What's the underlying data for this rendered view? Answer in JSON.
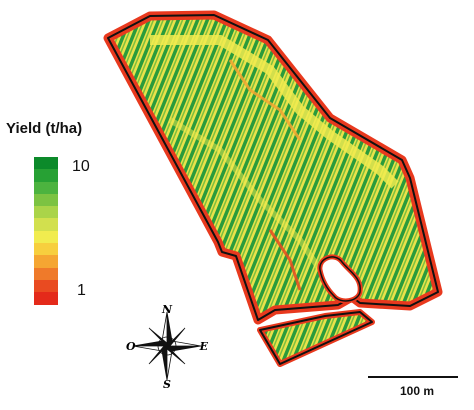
{
  "legend": {
    "title": "Yield (t/ha)",
    "max_label": "10",
    "min_label": "1",
    "colors": [
      "#0c8a2a",
      "#27a134",
      "#4cb33f",
      "#7cc342",
      "#aad449",
      "#d2e04e",
      "#f1ec4f",
      "#f7cf3e",
      "#f5a632",
      "#ef7a2a",
      "#e94b21",
      "#e42a1a"
    ]
  },
  "compass": {
    "north": "N",
    "south": "S",
    "east": "E",
    "west": "O"
  },
  "scale": {
    "label": "100 m"
  },
  "field_colors": {
    "outline": "#111111",
    "edge": "#e8391e",
    "green": "#1f9a3a",
    "yellow": "#f1ec4f"
  }
}
